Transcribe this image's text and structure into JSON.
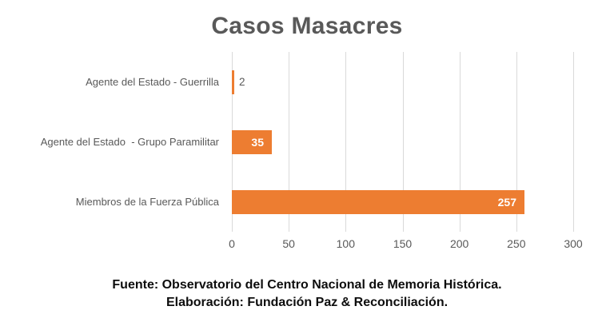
{
  "title": "Casos Masacres",
  "footer": {
    "line1": "Fuente: Observatorio del Centro Nacional de Memoria Histórica.",
    "line2": "Elaboración: Fundación Paz & Reconciliación."
  },
  "colors": {
    "bar": "#ed7d31",
    "title_text": "#595959",
    "axis_text": "#595959",
    "gridline": "#d9d9d9",
    "value_label_inside": "#ffffff",
    "value_label_outside": "#595959",
    "footer_text": "#0d0d0d",
    "background": "#ffffff"
  },
  "chart_data": {
    "type": "bar",
    "orientation": "horizontal",
    "title": "Casos Masacres",
    "categories": [
      "Agente del Estado - Guerrilla",
      "Agente del Estado  - Grupo Paramilitar",
      "Miembros de la Fuerza Pública"
    ],
    "values": [
      2,
      35,
      257
    ],
    "xlabel": "",
    "ylabel": "",
    "xlim": [
      0,
      300
    ],
    "xticks": [
      0,
      50,
      100,
      150,
      200,
      250,
      300
    ],
    "grid": "vertical-only",
    "legend": "none",
    "data_labels": true
  }
}
